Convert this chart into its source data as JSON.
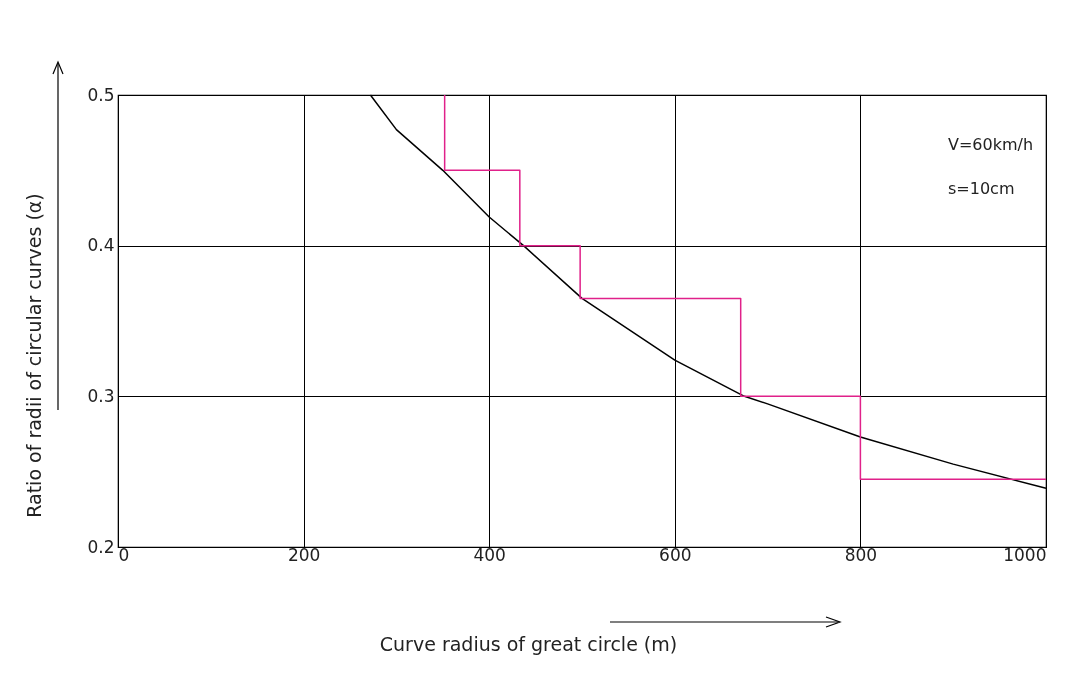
{
  "chart_data": {
    "type": "line",
    "xlabel": "Curve radius of great circle (m)",
    "ylabel": "Ratio of radii of circular curves (α)",
    "annotations": [
      "V=60km/h",
      "s=10cm"
    ],
    "series": [
      {
        "color": "#000000",
        "x": [
          272,
          300,
          350,
          400,
          437,
          500,
          600,
          675,
          700,
          800,
          900,
          1000
        ],
        "values": [
          0.5,
          0.477,
          0.45,
          0.419,
          0.4,
          0.365,
          0.324,
          0.3,
          0.295,
          0.273,
          0.255,
          0.239
        ]
      },
      {
        "type": "step",
        "color": "#e0218a",
        "x": [
          352,
          352,
          433,
          498,
          671,
          800,
          1000
        ],
        "values": [
          0.5,
          0.45,
          0.4,
          0.365,
          0.3,
          0.245,
          0.245
        ]
      }
    ],
    "xlim": [
      0,
      1000
    ],
    "xticks": [
      0,
      200,
      400,
      600,
      800,
      1000
    ],
    "ylim": [
      0.2,
      0.5
    ],
    "yticks": [
      {
        "value": 0.2,
        "label": "0.2"
      },
      {
        "value": 0.3,
        "label": "0.3"
      },
      {
        "value": 0.4,
        "label": "0.4"
      },
      {
        "value": 0.5,
        "label": "0.5"
      }
    ],
    "grid": true,
    "marker": "none",
    "line_style": "solid"
  }
}
